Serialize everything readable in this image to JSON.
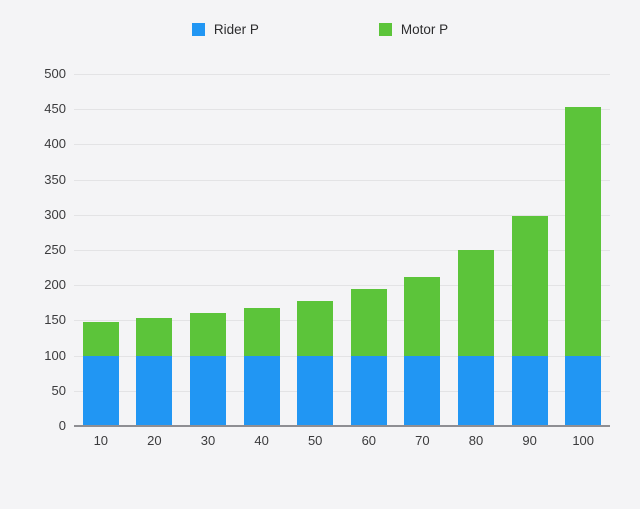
{
  "legend": {
    "items": [
      {
        "label": "Rider P",
        "color": "#2196f3"
      },
      {
        "label": "Motor P",
        "color": "#5cc43a"
      }
    ]
  },
  "chart_data": {
    "type": "bar",
    "stacked": true,
    "title": "",
    "xlabel": "",
    "ylabel": "",
    "categories": [
      "10",
      "20",
      "30",
      "40",
      "50",
      "60",
      "70",
      "80",
      "90",
      "100"
    ],
    "series": [
      {
        "name": "Rider P",
        "color": "#2196f3",
        "values": [
          100,
          100,
          100,
          100,
          100,
          100,
          100,
          100,
          100,
          100
        ]
      },
      {
        "name": "Motor P",
        "color": "#5cc43a",
        "values": [
          48,
          54,
          60,
          68,
          78,
          94,
          112,
          150,
          198,
          353
        ]
      }
    ],
    "stack_totals": [
      148,
      154,
      160,
      168,
      178,
      194,
      212,
      250,
      298,
      453
    ],
    "ylim": [
      0,
      500
    ],
    "ytick_step": 50,
    "yticks": [
      "0",
      "50",
      "100",
      "150",
      "200",
      "250",
      "300",
      "350",
      "400",
      "450",
      "500"
    ],
    "grid": true,
    "legend_position": "top",
    "background_color": "#f4f4f6",
    "gridline_color": "#e3e3e5",
    "axis_line_color": "#8e8e93",
    "tick_label_color": "#3b3b3d"
  }
}
